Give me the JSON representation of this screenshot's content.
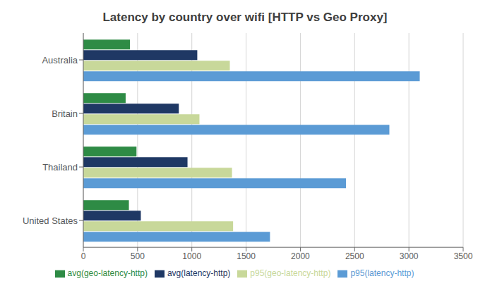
{
  "chart_data": {
    "type": "bar",
    "orientation": "horizontal",
    "title": "Latency by country over wifi [HTTP vs Geo Proxy]",
    "categories": [
      "Australia",
      "Britain",
      "Thailand",
      "United States"
    ],
    "series": [
      {
        "name": "avg(geo-latency-http)",
        "color": "#2e8b45",
        "values": [
          430,
          390,
          490,
          420
        ]
      },
      {
        "name": "avg(latency-http)",
        "color": "#1f3864",
        "values": [
          1050,
          880,
          960,
          530
        ]
      },
      {
        "name": "p95(geo-latency-http)",
        "color": "#c8d89a",
        "values": [
          1350,
          1070,
          1370,
          1380
        ]
      },
      {
        "name": "p95(latency-http)",
        "color": "#5b9bd5",
        "values": [
          3100,
          2820,
          2420,
          1720
        ]
      }
    ],
    "xlim": [
      0,
      3500
    ],
    "xticks": [
      0,
      500,
      1000,
      1500,
      2000,
      2500,
      3000,
      3500
    ],
    "grid": true,
    "legend": "bottom"
  }
}
